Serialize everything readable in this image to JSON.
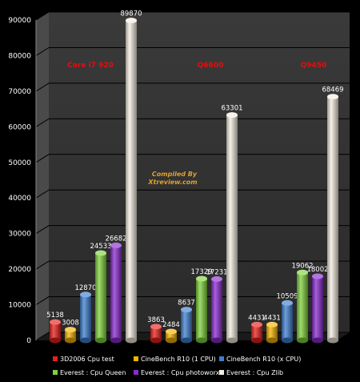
{
  "chart_data": {
    "type": "bar",
    "categories": [
      "Core i7 920",
      "Q6600",
      "Q9450"
    ],
    "ylim": [
      0,
      90000
    ],
    "yticks": [
      0,
      10000,
      20000,
      30000,
      40000,
      50000,
      60000,
      70000,
      80000,
      90000
    ],
    "grid": true,
    "legend_position": "bottom",
    "series": [
      {
        "name": "3D2006 Cpu test",
        "color": "#e8201c",
        "values": [
          5138,
          3863,
          4431
        ]
      },
      {
        "name": "CineBench R10 (1 CPU)",
        "color": "#f4b400",
        "values": [
          3008,
          2484,
          4431
        ]
      },
      {
        "name": "CineBench R10 (x CPU)",
        "color": "#3f7fd0",
        "values": [
          12870,
          8637,
          10509
        ]
      },
      {
        "name": "Everest : Cpu Queen",
        "color": "#7fd23c",
        "values": [
          24533,
          17329,
          19062
        ]
      },
      {
        "name": "Everest : Cpu photoworxx",
        "color": "#8a2bd0",
        "values": [
          26682,
          17231,
          18002
        ]
      },
      {
        "name": "Everest : Cpu  Zlib",
        "color": "#f3ece0",
        "values": [
          89870,
          63301,
          68469
        ]
      }
    ],
    "watermark": [
      "Compiled By",
      "Xtreview.com"
    ]
  }
}
